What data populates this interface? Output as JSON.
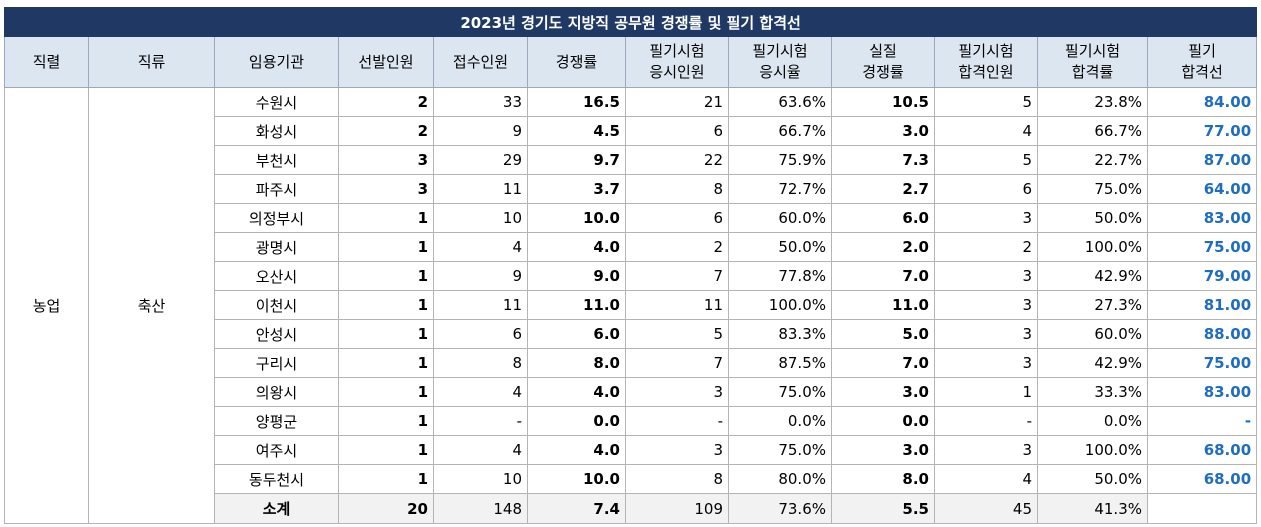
{
  "title": "2023년 경기도 지방직 공무원 경쟁률 및 필기 합격선",
  "headers": [
    "직렬",
    "직류",
    "임용기관",
    "선발인원",
    "접수인원",
    "경쟁률",
    "필기시험\n응시인원",
    "필기시험\n응시율",
    "실질\n경쟁률",
    "필기시험\n합격인원",
    "필기시험\n합격률",
    "필기\n합격선"
  ],
  "group": {
    "series": "농업",
    "category": "축산"
  },
  "rows": [
    {
      "agency": "수원시",
      "selected": "2",
      "applied": "33",
      "ratio": "16.5",
      "examinees": "21",
      "attendance": "63.6%",
      "real_ratio": "10.5",
      "passed": "5",
      "pass_rate": "23.8%",
      "cutoff": "84.00"
    },
    {
      "agency": "화성시",
      "selected": "2",
      "applied": "9",
      "ratio": "4.5",
      "examinees": "6",
      "attendance": "66.7%",
      "real_ratio": "3.0",
      "passed": "4",
      "pass_rate": "66.7%",
      "cutoff": "77.00"
    },
    {
      "agency": "부천시",
      "selected": "3",
      "applied": "29",
      "ratio": "9.7",
      "examinees": "22",
      "attendance": "75.9%",
      "real_ratio": "7.3",
      "passed": "5",
      "pass_rate": "22.7%",
      "cutoff": "87.00"
    },
    {
      "agency": "파주시",
      "selected": "3",
      "applied": "11",
      "ratio": "3.7",
      "examinees": "8",
      "attendance": "72.7%",
      "real_ratio": "2.7",
      "passed": "6",
      "pass_rate": "75.0%",
      "cutoff": "64.00"
    },
    {
      "agency": "의정부시",
      "selected": "1",
      "applied": "10",
      "ratio": "10.0",
      "examinees": "6",
      "attendance": "60.0%",
      "real_ratio": "6.0",
      "passed": "3",
      "pass_rate": "50.0%",
      "cutoff": "83.00"
    },
    {
      "agency": "광명시",
      "selected": "1",
      "applied": "4",
      "ratio": "4.0",
      "examinees": "2",
      "attendance": "50.0%",
      "real_ratio": "2.0",
      "passed": "2",
      "pass_rate": "100.0%",
      "cutoff": "75.00"
    },
    {
      "agency": "오산시",
      "selected": "1",
      "applied": "9",
      "ratio": "9.0",
      "examinees": "7",
      "attendance": "77.8%",
      "real_ratio": "7.0",
      "passed": "3",
      "pass_rate": "42.9%",
      "cutoff": "79.00"
    },
    {
      "agency": "이천시",
      "selected": "1",
      "applied": "11",
      "ratio": "11.0",
      "examinees": "11",
      "attendance": "100.0%",
      "real_ratio": "11.0",
      "passed": "3",
      "pass_rate": "27.3%",
      "cutoff": "81.00"
    },
    {
      "agency": "안성시",
      "selected": "1",
      "applied": "6",
      "ratio": "6.0",
      "examinees": "5",
      "attendance": "83.3%",
      "real_ratio": "5.0",
      "passed": "3",
      "pass_rate": "60.0%",
      "cutoff": "88.00"
    },
    {
      "agency": "구리시",
      "selected": "1",
      "applied": "8",
      "ratio": "8.0",
      "examinees": "7",
      "attendance": "87.5%",
      "real_ratio": "7.0",
      "passed": "3",
      "pass_rate": "42.9%",
      "cutoff": "75.00"
    },
    {
      "agency": "의왕시",
      "selected": "1",
      "applied": "4",
      "ratio": "4.0",
      "examinees": "3",
      "attendance": "75.0%",
      "real_ratio": "3.0",
      "passed": "1",
      "pass_rate": "33.3%",
      "cutoff": "83.00"
    },
    {
      "agency": "양평군",
      "selected": "1",
      "applied": "-",
      "ratio": "0.0",
      "examinees": "-",
      "attendance": "0.0%",
      "real_ratio": "0.0",
      "passed": "-",
      "pass_rate": "0.0%",
      "cutoff": "-"
    },
    {
      "agency": "여주시",
      "selected": "1",
      "applied": "4",
      "ratio": "4.0",
      "examinees": "3",
      "attendance": "75.0%",
      "real_ratio": "3.0",
      "passed": "3",
      "pass_rate": "100.0%",
      "cutoff": "68.00"
    },
    {
      "agency": "동두천시",
      "selected": "1",
      "applied": "10",
      "ratio": "10.0",
      "examinees": "8",
      "attendance": "80.0%",
      "real_ratio": "8.0",
      "passed": "4",
      "pass_rate": "50.0%",
      "cutoff": "68.00"
    }
  ],
  "subtotal": {
    "label": "소계",
    "selected": "20",
    "applied": "148",
    "ratio": "7.4",
    "examinees": "109",
    "attendance": "73.6%",
    "real_ratio": "5.5",
    "passed": "45",
    "pass_rate": "41.3%",
    "cutoff": ""
  },
  "colors": {
    "title_bg": "#1f3864",
    "header_bg": "#dce6f1",
    "cutoff_text": "#1f6dc0",
    "subtotal_bg": "#f2f2f2"
  }
}
